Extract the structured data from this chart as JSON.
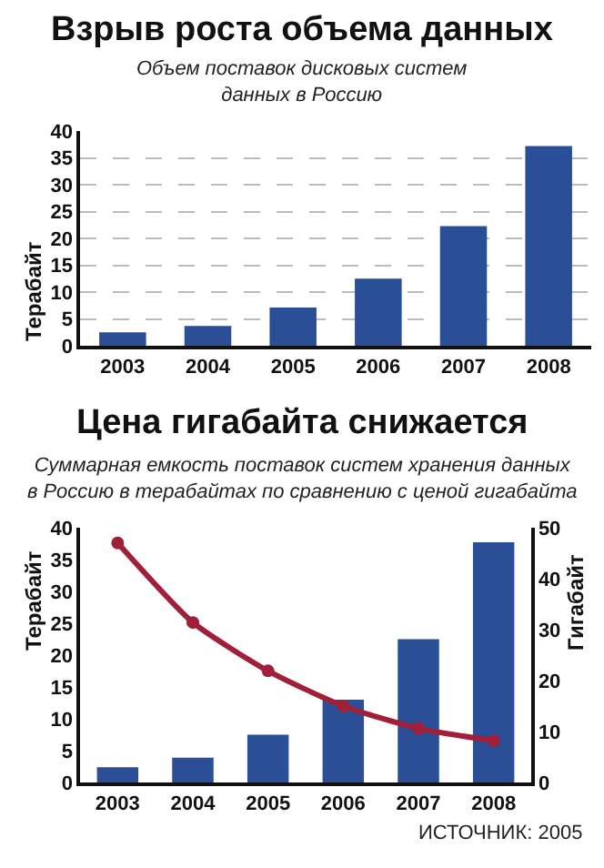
{
  "chart_data": [
    {
      "type": "bar",
      "title": "Взрыв роста объема данных",
      "subtitle": "Объем поставок дисковых систем\nданных в Россию",
      "ylabel": "Терабайт",
      "categories": [
        "2003",
        "2004",
        "2005",
        "2006",
        "2007",
        "2008"
      ],
      "series": [
        {
          "color": "#2a4f96",
          "values": [
            2.5,
            3.7,
            7.1,
            12.5,
            22.3,
            37.2
          ]
        }
      ],
      "ylim": [
        0,
        40
      ],
      "yticks": [
        0,
        5,
        10,
        15,
        20,
        25,
        30,
        35,
        40
      ],
      "grid": "y"
    },
    {
      "type": "bar",
      "title": "Цена гигабайта снижается",
      "subtitle": "Суммарная емкость поставок систем хранения данных\nв Россию в терабайтах по сравнению с ценой гигабайта",
      "ylabel": "Терабайт",
      "y2label": "Гигабайт",
      "categories": [
        "2003",
        "2004",
        "2005",
        "2006",
        "2007",
        "2008"
      ],
      "series": [
        {
          "color": "#2a4f96",
          "values": [
            2.4,
            3.9,
            7.5,
            13.0,
            22.5,
            37.7
          ]
        },
        {
          "type": "line",
          "axis": "y2",
          "color": "#a0203a",
          "values": [
            47,
            31.4,
            21.9,
            15.0,
            10.6,
            8.2
          ]
        }
      ],
      "ylim": [
        0,
        40
      ],
      "yticks": [
        0,
        5,
        10,
        15,
        20,
        25,
        30,
        35,
        40
      ],
      "y2lim": [
        0,
        50
      ],
      "y2ticks": [
        0,
        10,
        20,
        30,
        40,
        50
      ],
      "marker": "circle",
      "line_style": "solid",
      "grid": false,
      "annotations": [
        "ИСТОЧНИК: 2005"
      ]
    }
  ]
}
